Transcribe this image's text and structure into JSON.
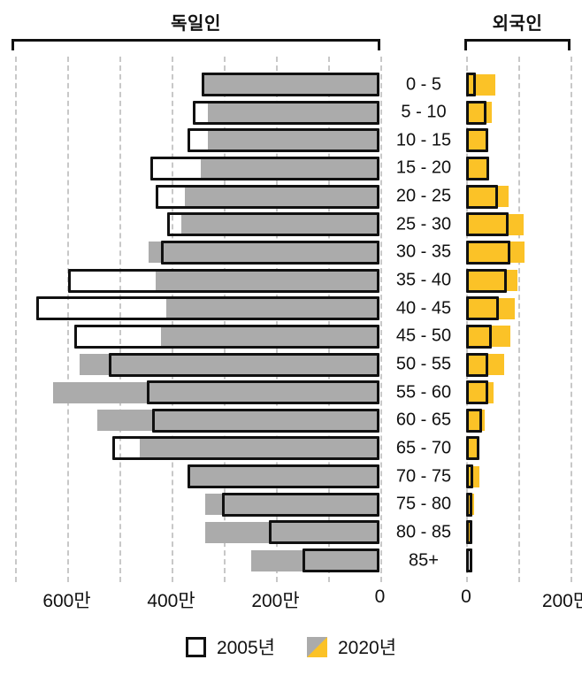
{
  "header": {
    "left_group_label": "독일인",
    "right_group_label": "외국인"
  },
  "legend": {
    "items": [
      {
        "label": "2005년",
        "swatch": "white-outline-box"
      },
      {
        "label": "2020년",
        "swatch": "gray-yellow-diagonal-box"
      }
    ]
  },
  "colors": {
    "bar_2020_german": "#ababab",
    "bar_2020_foreigner": "#fbc227",
    "bar_2005_outline": "#111111",
    "gridline": "#c8c8c8"
  },
  "axis": {
    "left_ticks": [
      {
        "label": "600만",
        "value": 600
      },
      {
        "label": "400만",
        "value": 400
      },
      {
        "label": "200만",
        "value": 200
      },
      {
        "label": "0",
        "value": 0
      }
    ],
    "right_ticks": [
      {
        "label": "0",
        "value": 0
      },
      {
        "label": "200만",
        "value": 200
      }
    ],
    "left_gridline_values": [
      700,
      600,
      500,
      400,
      300,
      200,
      100,
      0
    ],
    "right_gridline_values": [
      0,
      100,
      200
    ]
  },
  "chart_data": {
    "type": "bar",
    "subtype": "population-pyramid",
    "unit": "만 (10,000 persons)",
    "title": "",
    "left_panel_label": "독일인",
    "right_panel_label": "외국인",
    "categories": [
      "0 - 5",
      "5 - 10",
      "10 - 15",
      "15 - 20",
      "20 - 25",
      "25 - 30",
      "30 - 35",
      "35 - 40",
      "40 - 45",
      "45 - 50",
      "50 - 55",
      "55 - 60",
      "60 - 65",
      "65 - 70",
      "70 - 75",
      "75 - 80",
      "80 - 85",
      "85+"
    ],
    "left_axis_range": [
      0,
      700
    ],
    "right_axis_range": [
      0,
      200
    ],
    "grid": "dashed-vertical",
    "legend_position": "bottom-center",
    "series": [
      {
        "name": "독일인 2005년",
        "panel": "left",
        "style": "white-black-outline",
        "values": [
          342,
          359,
          369,
          439,
          429,
          407,
          420,
          597,
          658,
          585,
          520,
          446,
          437,
          512,
          369,
          302,
          212,
          149
        ]
      },
      {
        "name": "독일인 2020년",
        "panel": "left",
        "style": "gray-fill",
        "values": [
          337,
          329,
          329,
          344,
          373,
          381,
          444,
          429,
          410,
          419,
          576,
          627,
          542,
          461,
          363,
          334,
          334,
          246
        ]
      },
      {
        "name": "외국인 2005년",
        "panel": "right",
        "style": "white-black-outline",
        "values": [
          19,
          39,
          42,
          44,
          61,
          81,
          85,
          78,
          63,
          49,
          42,
          42,
          31,
          25,
          14,
          7,
          4,
          4
        ]
      },
      {
        "name": "외국인 2020년",
        "panel": "right",
        "style": "yellow-fill",
        "values": [
          56,
          49,
          40,
          42,
          81,
          110,
          112,
          98,
          93,
          84,
          73,
          52,
          36,
          24,
          25,
          16,
          9,
          5
        ]
      }
    ]
  }
}
